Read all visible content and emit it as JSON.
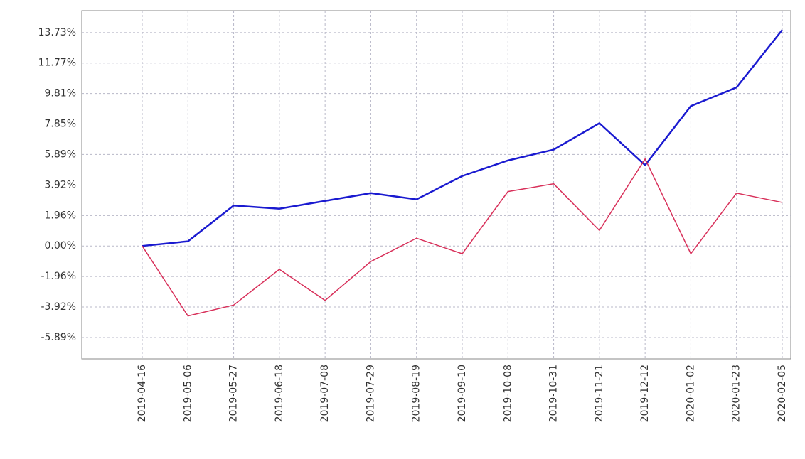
{
  "chart_data": {
    "type": "line",
    "categories": [
      "2019-04-16",
      "2019-05-06",
      "2019-05-27",
      "2019-06-18",
      "2019-07-08",
      "2019-07-29",
      "2019-08-19",
      "2019-09-10",
      "2019-10-08",
      "2019-10-31",
      "2019-11-21",
      "2019-12-12",
      "2020-01-02",
      "2020-01-23",
      "2020-02-05"
    ],
    "series": [
      {
        "color": "#1a1ad0",
        "values": [
          0.0,
          0.3,
          2.6,
          2.4,
          2.9,
          3.4,
          3.0,
          4.5,
          5.5,
          6.2,
          7.9,
          5.2,
          9.0,
          10.2,
          13.9
        ]
      },
      {
        "color": "#d8305a",
        "values": [
          0.0,
          -4.5,
          -3.8,
          -1.5,
          -3.5,
          -1.0,
          0.5,
          -0.5,
          3.5,
          4.0,
          1.0,
          5.6,
          -0.5,
          3.4,
          2.8
        ]
      }
    ],
    "ylim": [
      -7.26,
      15.14
    ],
    "yticks": [
      {
        "value": 13.73,
        "label": "13.73%"
      },
      {
        "value": 11.77,
        "label": "11.77%"
      },
      {
        "value": 9.81,
        "label": "9.81%"
      },
      {
        "value": 7.85,
        "label": "7.85%"
      },
      {
        "value": 5.89,
        "label": "5.89%"
      },
      {
        "value": 3.92,
        "label": "3.92%"
      },
      {
        "value": 1.96,
        "label": "1.96%"
      },
      {
        "value": 0.0,
        "label": "0.00%"
      },
      {
        "value": -1.96,
        "label": "-1.96%"
      },
      {
        "value": -3.92,
        "label": "-3.92%"
      },
      {
        "value": -5.89,
        "label": "-5.89%"
      }
    ],
    "grid": true
  }
}
